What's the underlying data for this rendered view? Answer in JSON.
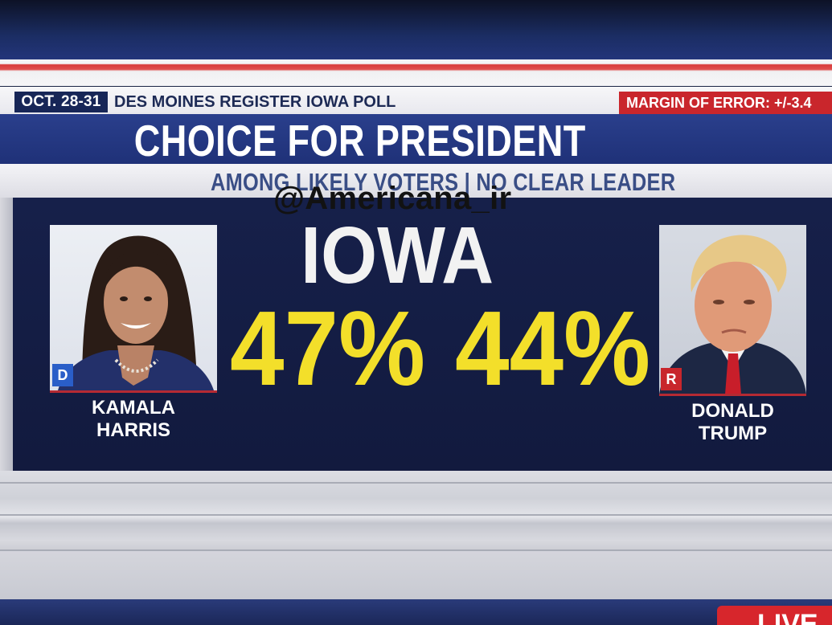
{
  "ticker": {
    "date": "OCT. 28-31",
    "poll_name": "DES MOINES REGISTER IOWA POLL",
    "margin_of_error": "MARGIN OF ERROR: +/-3.4"
  },
  "headline": "CHOICE FOR PRESIDENT",
  "subheadline": "AMONG LIKELY VOTERS | NO CLEAR LEADER",
  "watermark": "@Americana_ir",
  "state": "IOWA",
  "candidates": [
    {
      "first_name": "KAMALA",
      "last_name": "HARRIS",
      "party_badge": "D",
      "percent": "47%",
      "party_color": "#2a5ec8"
    },
    {
      "first_name": "DONALD",
      "last_name": "TRUMP",
      "party_badge": "R",
      "percent": "44%",
      "party_color": "#c8262c"
    }
  ],
  "live_tag": "LIVE",
  "colors": {
    "panel": "#16204a",
    "percent_yellow": "#f3df2a",
    "accent_red": "#c9262c",
    "header_blue": "#2a3f8c"
  }
}
